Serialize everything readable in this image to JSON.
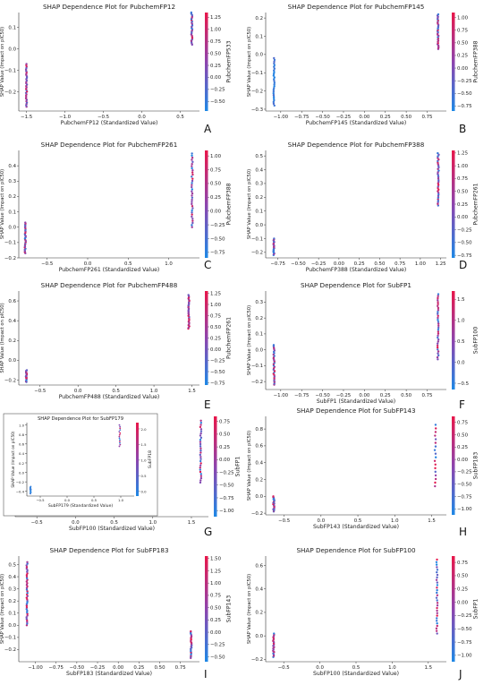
{
  "chart_data": [
    {
      "letter": "A",
      "type": "scatter",
      "title": "SHAP Dependence Plot for PubchemFP12",
      "xlabel": "PubchemFP12 (Standardized Value)",
      "ylabel": "SHAP Value (Impact on pIC50)",
      "xlim": [
        -1.6,
        0.75
      ],
      "ylim": [
        -0.29,
        0.17
      ],
      "xticks": [
        -1.5,
        -1.0,
        -0.5,
        0.0,
        0.5
      ],
      "xtick_labels": [
        "−1.5",
        "−1.0",
        "−0.5",
        "0.0",
        "0.5"
      ],
      "yticks": [
        -0.2,
        -0.1,
        0.0,
        0.1
      ],
      "ytick_labels": [
        "−0.2",
        "−0.1",
        "0.0",
        "0.1"
      ],
      "clusters": [
        {
          "x": -1.5,
          "ymin": -0.27,
          "ymax": -0.07,
          "n": 32,
          "color_min": 0.2,
          "color_max": 1.0
        },
        {
          "x": 0.65,
          "ymin": 0.02,
          "ymax": 0.17,
          "n": 26,
          "color_min": 0.05,
          "color_max": 0.95
        }
      ],
      "colorbar": {
        "label": "PubchemFP533",
        "vmin": -0.7,
        "vmax": 1.35,
        "ticks": [
          1.25,
          1.0,
          0.75,
          0.5,
          0.25,
          0.0,
          -0.25,
          -0.5
        ],
        "tick_labels": [
          "1.25",
          "1.00",
          "0.75",
          "0.50",
          "0.25",
          "0.00",
          "−0.25",
          "−0.50"
        ]
      }
    },
    {
      "letter": "B",
      "type": "scatter",
      "title": "SHAP Dependence Plot for PubchemFP145",
      "xlabel": "PubchemFP145 (Standardized Value)",
      "ylabel": "SHAP Value (Impact on pIC50)",
      "xlim": [
        -1.18,
        0.98
      ],
      "ylim": [
        -0.31,
        0.23
      ],
      "xticks": [
        -1.0,
        -0.75,
        -0.5,
        -0.25,
        0.0,
        0.25,
        0.5,
        0.75
      ],
      "xtick_labels": [
        "−1.00",
        "−0.75",
        "−0.50",
        "−0.25",
        "0.00",
        "0.25",
        "0.50",
        "0.75"
      ],
      "yticks": [
        -0.3,
        -0.2,
        -0.1,
        0.0,
        0.1,
        0.2
      ],
      "ytick_labels": [
        "−0.3",
        "−0.2",
        "−0.1",
        "0.0",
        "0.1",
        "0.2"
      ],
      "clusters": [
        {
          "x": -1.08,
          "ymin": -0.28,
          "ymax": -0.02,
          "n": 28,
          "color_min": 0.0,
          "color_max": 0.25
        },
        {
          "x": 0.88,
          "ymin": 0.03,
          "ymax": 0.22,
          "n": 30,
          "color_min": 0.05,
          "color_max": 1.0
        }
      ],
      "colorbar": {
        "label": "PubchemFP388",
        "vmin": -0.85,
        "vmax": 1.1,
        "ticks": [
          1.0,
          0.75,
          0.5,
          0.25,
          0.0,
          -0.25,
          -0.5,
          -0.75
        ],
        "tick_labels": [
          "1.00",
          "0.75",
          "0.50",
          "0.25",
          "0.00",
          "−0.25",
          "−0.50",
          "−0.75"
        ]
      }
    },
    {
      "letter": "C",
      "type": "scatter",
      "title": "SHAP Dependence Plot for PubchemFP261",
      "xlabel": "PubchemFP261 (Standardized Value)",
      "ylabel": "SHAP Value (Impact on pIC50)",
      "xlim": [
        -0.85,
        1.38
      ],
      "ylim": [
        -0.2,
        0.5
      ],
      "xticks": [
        -0.5,
        0.0,
        0.5,
        1.0
      ],
      "xtick_labels": [
        "−0.5",
        "0.0",
        "0.5",
        "1.0"
      ],
      "yticks": [
        -0.2,
        -0.1,
        0.0,
        0.1,
        0.2,
        0.3,
        0.4
      ],
      "ytick_labels": [
        "−0.2",
        "−0.1",
        "0.0",
        "0.1",
        "0.2",
        "0.3",
        "0.4"
      ],
      "clusters": [
        {
          "x": -0.77,
          "ymin": -0.17,
          "ymax": 0.03,
          "n": 28,
          "color_min": 0.0,
          "color_max": 1.0
        },
        {
          "x": 1.29,
          "ymin": 0.0,
          "ymax": 0.48,
          "n": 36,
          "color_min": 0.0,
          "color_max": 1.0
        }
      ],
      "colorbar": {
        "label": "PubchemFP388",
        "vmin": -0.85,
        "vmax": 1.1,
        "ticks": [
          1.0,
          0.75,
          0.5,
          0.25,
          0.0,
          -0.25,
          -0.5,
          -0.75
        ],
        "tick_labels": [
          "1.00",
          "0.75",
          "0.50",
          "0.25",
          "0.00",
          "−0.25",
          "−0.50",
          "−0.75"
        ]
      }
    },
    {
      "letter": "D",
      "type": "scatter",
      "title": "SHAP Dependence Plot for PubchemFP388",
      "xlabel": "PubchemFP388 (Standardized Value)",
      "ylabel": "SHAP Value (Impact on pIC50)",
      "xlim": [
        -0.9,
        1.32
      ],
      "ylim": [
        -0.24,
        0.54
      ],
      "xticks": [
        -0.75,
        -0.5,
        -0.25,
        0.0,
        0.25,
        0.5,
        0.75,
        1.0,
        1.25
      ],
      "xtick_labels": [
        "−0.75",
        "−0.50",
        "−0.25",
        "0.00",
        "0.25",
        "0.50",
        "0.75",
        "1.00",
        "1.25"
      ],
      "yticks": [
        -0.2,
        -0.1,
        0.0,
        0.1,
        0.2,
        0.3,
        0.4,
        0.5
      ],
      "ytick_labels": [
        "−0.2",
        "−0.1",
        "0.0",
        "0.1",
        "0.2",
        "0.3",
        "0.4",
        "0.5"
      ],
      "clusters": [
        {
          "x": -0.8,
          "ymin": -0.22,
          "ymax": -0.1,
          "n": 20,
          "color_min": 0.0,
          "color_max": 1.0
        },
        {
          "x": 1.22,
          "ymin": 0.14,
          "ymax": 0.52,
          "n": 34,
          "color_min": 0.1,
          "color_max": 1.0
        }
      ],
      "colorbar": {
        "label": "PubchemFP261",
        "vmin": -0.8,
        "vmax": 1.3,
        "ticks": [
          1.25,
          1.0,
          0.75,
          0.5,
          0.25,
          0.0,
          -0.25,
          -0.5,
          -0.75
        ],
        "tick_labels": [
          "1.25",
          "1.00",
          "0.75",
          "0.50",
          "0.25",
          "0.00",
          "−0.25",
          "−0.50",
          "−0.75"
        ]
      }
    },
    {
      "letter": "E",
      "type": "scatter",
      "title": "SHAP Dependence Plot for PubchemFP488",
      "xlabel": "PubchemFP488 (Standardized Value)",
      "ylabel": "SHAP Value (Impact on pIC50)",
      "xlim": [
        -0.78,
        1.6
      ],
      "ylim": [
        -0.25,
        0.7
      ],
      "xticks": [
        -0.5,
        0.0,
        0.5,
        1.0,
        1.5
      ],
      "xtick_labels": [
        "−0.5",
        "0.0",
        "0.5",
        "1.0",
        "1.5"
      ],
      "yticks": [
        -0.2,
        0.0,
        0.2,
        0.4,
        0.6
      ],
      "ytick_labels": [
        "−0.2",
        "0.0",
        "0.2",
        "0.4",
        "0.6"
      ],
      "clusters": [
        {
          "x": -0.68,
          "ymin": -0.22,
          "ymax": -0.1,
          "n": 18,
          "color_min": 0.0,
          "color_max": 1.0
        },
        {
          "x": 1.46,
          "ymin": 0.32,
          "ymax": 0.66,
          "n": 30,
          "color_min": 0.3,
          "color_max": 1.0
        }
      ],
      "colorbar": {
        "label": "PubchemFP261",
        "vmin": -0.8,
        "vmax": 1.3,
        "ticks": [
          1.25,
          1.0,
          0.75,
          0.5,
          0.25,
          0.0,
          -0.25,
          -0.5,
          -0.75
        ],
        "tick_labels": [
          "1.25",
          "1.00",
          "0.75",
          "0.50",
          "0.25",
          "0.00",
          "−0.25",
          "−0.50",
          "−0.75"
        ]
      }
    },
    {
      "letter": "F",
      "type": "scatter",
      "title": "SHAP Dependence Plot for SubFP1",
      "xlabel": "SubFP1 (Standardized Value)",
      "ylabel": "SHAP Value (Impact on pIC50)",
      "xlim": [
        -1.18,
        0.98
      ],
      "ylim": [
        -0.25,
        0.37
      ],
      "xticks": [
        -1.0,
        -0.75,
        -0.5,
        -0.25,
        0.0,
        0.25,
        0.5,
        0.75
      ],
      "xtick_labels": [
        "−1.00",
        "−0.75",
        "−0.50",
        "−0.25",
        "0.00",
        "0.25",
        "0.50",
        "0.75"
      ],
      "yticks": [
        -0.2,
        -0.1,
        0.0,
        0.1,
        0.2,
        0.3
      ],
      "ytick_labels": [
        "−0.2",
        "−0.1",
        "0.0",
        "0.1",
        "0.2",
        "0.3"
      ],
      "clusters": [
        {
          "x": -1.08,
          "ymin": -0.22,
          "ymax": 0.03,
          "n": 30,
          "color_min": 0.0,
          "color_max": 1.0
        },
        {
          "x": 0.88,
          "ymin": -0.06,
          "ymax": 0.35,
          "n": 34,
          "color_min": 0.0,
          "color_max": 1.0
        }
      ],
      "colorbar": {
        "label": "SubFP100",
        "vmin": -0.65,
        "vmax": 1.7,
        "ticks": [
          1.5,
          1.0,
          0.5,
          0.0,
          -0.5
        ],
        "tick_labels": [
          "1.5",
          "1.0",
          "0.5",
          "0.0",
          "−0.5"
        ]
      }
    },
    {
      "letter": "G",
      "type": "scatter",
      "title": "",
      "xlabel": "SubFP100 (Standardized Value)",
      "ylabel": "",
      "xlim": [
        -0.78,
        1.72
      ],
      "ylim": [
        -0.22,
        0.72
      ],
      "xticks": [
        -0.5,
        0.0,
        0.5,
        1.0,
        1.5
      ],
      "xtick_labels": [
        "−0.5",
        "0.0",
        "0.5",
        "1.0",
        "1.5"
      ],
      "yticks": [],
      "ytick_labels": [],
      "clusters": [
        {
          "x": -0.66,
          "ymin": -0.19,
          "ymax": -0.16,
          "n": 3,
          "color_min": 0.0,
          "color_max": 0.1
        },
        {
          "x": 1.62,
          "ymin": 0.1,
          "ymax": 0.68,
          "n": 30,
          "color_min": 0.0,
          "color_max": 1.0
        }
      ],
      "colorbar": {
        "label": "SubFP1",
        "vmin": -1.12,
        "vmax": 0.85,
        "ticks": [
          0.75,
          0.5,
          0.25,
          0.0,
          -0.25,
          -0.5,
          -0.75,
          -1.0
        ],
        "tick_labels": [
          "0.75",
          "0.50",
          "0.25",
          "0.00",
          "−0.25",
          "−0.50",
          "−0.75",
          "−1.00"
        ]
      },
      "inset": {
        "title": "SHAP Dependence Plot for SubFP179",
        "xlabel": "SubFP179 (Standardized Value)",
        "ylabel": "SHAP Value (Impact on pIC50)",
        "xlim": [
          -0.75,
          1.25
        ],
        "ylim": [
          -0.5,
          1.05
        ],
        "xticks": [
          -0.5,
          0.0,
          0.5,
          1.0
        ],
        "xtick_labels": [
          "−0.5",
          "0.0",
          "0.5",
          "1.0"
        ],
        "yticks": [
          -0.4,
          -0.2,
          0.0,
          0.2,
          0.4,
          0.6,
          0.8,
          1.0
        ],
        "ytick_labels": [
          "−0.4",
          "−0.2",
          "0.0",
          "0.2",
          "0.4",
          "0.6",
          "0.8",
          "1.0"
        ],
        "clusters": [
          {
            "x": -0.68,
            "ymin": -0.45,
            "ymax": -0.3,
            "n": 10,
            "color_min": 0.0,
            "color_max": 0.15
          },
          {
            "x": 0.98,
            "ymin": 0.55,
            "ymax": 1.0,
            "n": 14,
            "color_min": 0.0,
            "color_max": 1.0
          }
        ],
        "colorbar": {
          "label": "SubFP18",
          "vmin": -0.15,
          "vmax": 2.2,
          "ticks": [
            2.0,
            1.5,
            1.0,
            0.5,
            0.0
          ],
          "tick_labels": [
            "2.0",
            "1.5",
            "1.0",
            "0.5",
            "0.0"
          ]
        }
      }
    },
    {
      "letter": "H",
      "type": "scatter",
      "title": "SHAP Dependence Plot for SubFP143",
      "xlabel": "SubFP143 (Standardized Value)",
      "ylabel": "SHAP Value (Impact on pIC50)",
      "xlim": [
        -0.75,
        1.7
      ],
      "ylim": [
        -0.22,
        0.95
      ],
      "xticks": [
        -0.5,
        0.0,
        0.5,
        1.0,
        1.5
      ],
      "xtick_labels": [
        "−0.5",
        "0.0",
        "0.5",
        "1.0",
        "1.5"
      ],
      "yticks": [
        -0.2,
        0.0,
        0.2,
        0.4,
        0.6,
        0.8
      ],
      "ytick_labels": [
        "−0.2",
        "0.0",
        "0.2",
        "0.4",
        "0.6",
        "0.8"
      ],
      "clusters": [
        {
          "x": -0.64,
          "ymin": -0.18,
          "ymax": 0.0,
          "n": 22,
          "color_min": 0.0,
          "color_max": 1.0
        },
        {
          "x": 1.55,
          "ymin": 0.12,
          "ymax": 0.85,
          "n": 18,
          "color_min": 0.0,
          "color_max": 1.0
        }
      ],
      "colorbar": {
        "label": "SubFP183",
        "vmin": -1.12,
        "vmax": 0.87,
        "ticks": [
          0.75,
          0.5,
          0.25,
          0.0,
          -0.25,
          -0.5,
          -0.75,
          -1.0
        ],
        "tick_labels": [
          "0.75",
          "0.50",
          "0.25",
          "0.00",
          "−0.25",
          "−0.50",
          "−0.75",
          "−1.00"
        ]
      }
    },
    {
      "letter": "I",
      "type": "scatter",
      "title": "SHAP Dependence Plot for SubFP183",
      "xlabel": "SubFP183 (Standardized Value)",
      "ylabel": "SHAP Value (Impact on pIC50)",
      "xlim": [
        -1.2,
        0.98
      ],
      "ylim": [
        -0.3,
        0.57
      ],
      "xticks": [
        -1.0,
        -0.75,
        -0.5,
        -0.25,
        0.0,
        0.25,
        0.5,
        0.75
      ],
      "xtick_labels": [
        "−1.00",
        "−0.75",
        "−0.50",
        "−0.25",
        "0.00",
        "0.25",
        "0.50",
        "0.75"
      ],
      "yticks": [
        -0.2,
        -0.1,
        0.0,
        0.1,
        0.2,
        0.3,
        0.4,
        0.5
      ],
      "ytick_labels": [
        "−0.2",
        "−0.1",
        "0.0",
        "0.1",
        "0.2",
        "0.3",
        "0.4",
        "0.5"
      ],
      "clusters": [
        {
          "x": -1.1,
          "ymin": 0.0,
          "ymax": 0.52,
          "n": 40,
          "color_min": 0.0,
          "color_max": 1.0
        },
        {
          "x": 0.88,
          "ymin": -0.27,
          "ymax": -0.05,
          "n": 24,
          "color_min": 0.0,
          "color_max": 1.0
        }
      ],
      "colorbar": {
        "label": "SubFP143",
        "vmin": -0.6,
        "vmax": 1.55,
        "ticks": [
          1.5,
          1.25,
          1.0,
          0.75,
          0.5,
          0.25,
          0.0,
          -0.25,
          -0.5
        ],
        "tick_labels": [
          "1.50",
          "1.25",
          "1.00",
          "0.75",
          "0.50",
          "0.25",
          "0.00",
          "−0.25",
          "−0.50"
        ]
      }
    },
    {
      "letter": "J",
      "type": "scatter",
      "title": "SHAP Dependence Plot for SubFP100",
      "xlabel": "SubFP100 (Standardized Value)",
      "ylabel": "SHAP Value (Impact on pIC50)",
      "xlim": [
        -0.75,
        1.75
      ],
      "ylim": [
        -0.22,
        0.68
      ],
      "xticks": [
        -0.5,
        0.0,
        0.5,
        1.0,
        1.5
      ],
      "xtick_labels": [
        "−0.5",
        "0.0",
        "0.5",
        "1.0",
        "1.5"
      ],
      "yticks": [
        -0.2,
        0.0,
        0.2,
        0.4,
        0.6
      ],
      "ytick_labels": [
        "−0.2",
        "0.0",
        "0.2",
        "0.4",
        "0.6"
      ],
      "clusters": [
        {
          "x": -0.64,
          "ymin": -0.18,
          "ymax": 0.02,
          "n": 20,
          "color_min": 0.0,
          "color_max": 1.0
        },
        {
          "x": 1.62,
          "ymin": 0.02,
          "ymax": 0.65,
          "n": 30,
          "color_min": 0.0,
          "color_max": 1.0
        }
      ],
      "colorbar": {
        "label": "SubFP1",
        "vmin": -1.12,
        "vmax": 0.87,
        "ticks": [
          0.75,
          0.5,
          0.25,
          0.0,
          -0.25,
          -0.5,
          -0.75,
          -1.0
        ],
        "tick_labels": [
          "0.75",
          "0.50",
          "0.25",
          "0.00",
          "−0.25",
          "−0.50",
          "−0.75",
          "−1.00"
        ]
      }
    }
  ],
  "colors": {
    "low": "#1e88e5",
    "mid": "#8e44ad",
    "high": "#e8174a"
  }
}
